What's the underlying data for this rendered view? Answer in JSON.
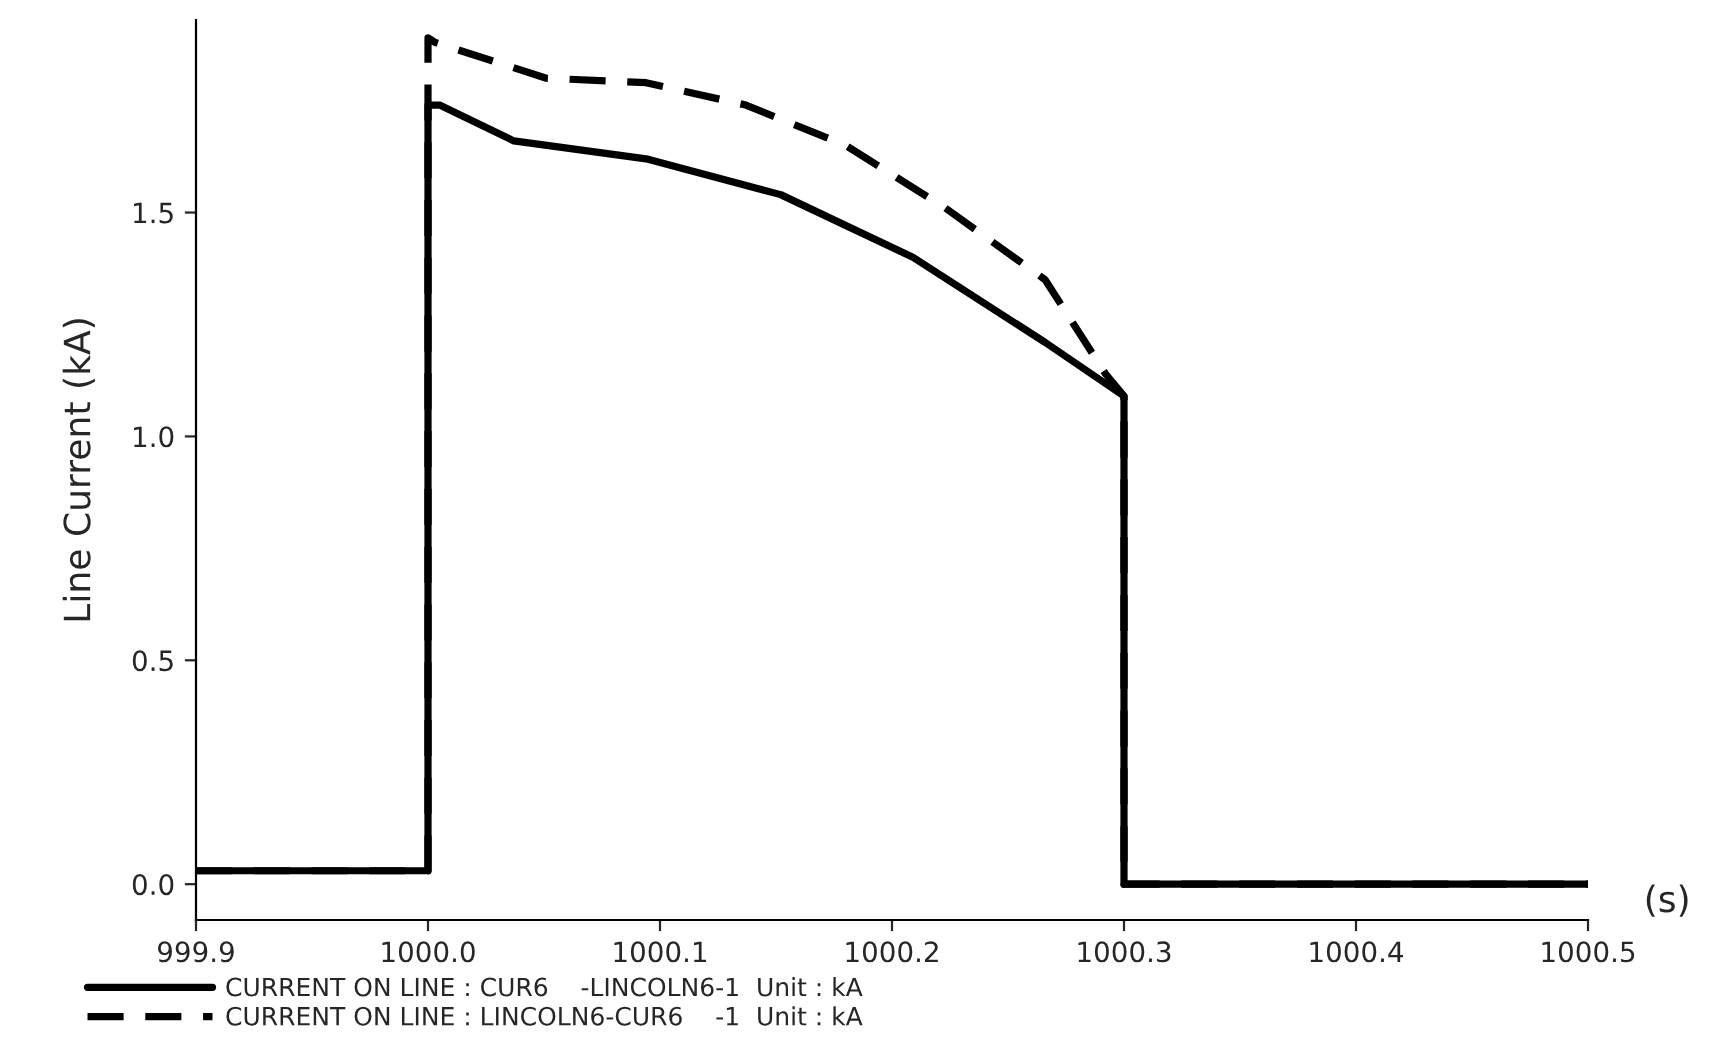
{
  "chart_data": {
    "type": "line",
    "ylabel": "Line Current (kA)",
    "xlabel": "(s)",
    "xlim": [
      999.9,
      1000.5
    ],
    "xticks": [
      {
        "value": 999.9,
        "label": "999.9"
      },
      {
        "value": 1000.0,
        "label": "1000.0"
      },
      {
        "value": 1000.1,
        "label": "1000.1"
      },
      {
        "value": 1000.2,
        "label": "1000.2"
      },
      {
        "value": 1000.3,
        "label": "1000.3"
      },
      {
        "value": 1000.4,
        "label": "1000.4"
      },
      {
        "value": 1000.5,
        "label": "1000.5"
      }
    ],
    "ylim": [
      -0.08,
      1.93
    ],
    "yticks": [
      {
        "value": 0,
        "label": "0.0"
      },
      {
        "value": 0.5,
        "label": "0.5"
      },
      {
        "value": 1.0,
        "label": "1.0"
      },
      {
        "value": 1.5,
        "label": "1.5"
      }
    ],
    "grid": false,
    "legend": "bottom",
    "marker": "none",
    "series": [
      {
        "name": "CURRENT ON LINE : CUR6    -LINCOLN6-1  Unit : kA",
        "color": "#000000",
        "line_style": "solid",
        "x": [
          999.9,
          1000.0,
          1000.0,
          1000.005,
          1000.037,
          1000.094,
          1000.152,
          1000.209,
          1000.266,
          1000.3,
          1000.3,
          1000.5
        ],
        "values": [
          0.03,
          0.03,
          1.74,
          1.74,
          1.66,
          1.62,
          1.54,
          1.4,
          1.21,
          1.09,
          0.0,
          0.0
        ]
      },
      {
        "name": "CURRENT ON LINE : LINCOLN6-CUR6    -1  Unit : kA",
        "color": "#000000",
        "line_style": "dashed",
        "x": [
          999.9,
          1000.0,
          1000.0,
          1000.003,
          1000.051,
          1000.094,
          1000.137,
          1000.18,
          1000.223,
          1000.266,
          1000.292,
          1000.3,
          1000.3,
          1000.5
        ],
        "values": [
          0.03,
          0.03,
          1.89,
          1.88,
          1.8,
          1.79,
          1.74,
          1.65,
          1.51,
          1.35,
          1.14,
          1.09,
          0.0,
          0.0
        ]
      }
    ]
  }
}
